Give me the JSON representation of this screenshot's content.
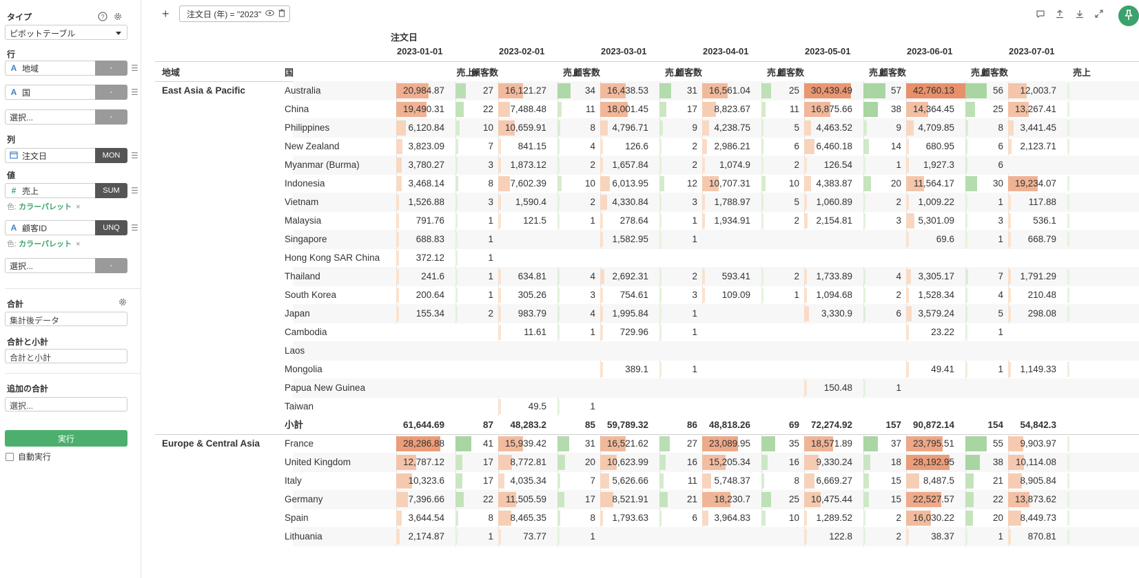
{
  "sidebar": {
    "type_label": "タイプ",
    "type_value": "ピボットテーブル",
    "rows_label": "行",
    "rows": [
      {
        "field": "地域",
        "agg": "-"
      },
      {
        "field": "国",
        "agg": "-"
      }
    ],
    "rows_empty": {
      "field": "選択...",
      "agg": "-"
    },
    "cols_label": "列",
    "col": {
      "field": "注文日",
      "agg": "MON"
    },
    "values_label": "値",
    "values": [
      {
        "field": "売上",
        "agg": "SUM",
        "color_prefix": "色:",
        "color_value": "カラーパレット",
        "remove": "×"
      },
      {
        "field": "顧客ID",
        "agg": "UNQ",
        "color_prefix": "色:",
        "color_value": "カラーパレット",
        "remove": "×"
      }
    ],
    "values_empty": {
      "field": "選択...",
      "agg": "-"
    },
    "total_label": "合計",
    "total_value": "集計後データ",
    "subtotal_label": "合計と小計",
    "subtotal_value": "合計と小計",
    "extra_total_label": "追加の合計",
    "extra_total_placeholder": "選択...",
    "run_label": "実行",
    "autorun_label": "自動実行"
  },
  "topbar": {
    "add_icon": "+",
    "filter_text": "注文日 (年) = \"2023\""
  },
  "pivot": {
    "col_field": "注文日",
    "row_headers": [
      "地域",
      "国"
    ],
    "months": [
      "2023-01-01",
      "2023-02-01",
      "2023-03-01",
      "2023-04-01",
      "2023-05-01",
      "2023-06-01",
      "2023-07-01"
    ],
    "sales_header": "売上",
    "sort_indicator": "▾",
    "customers_header": "顧客数",
    "subtotal_label": "小計",
    "rows": [
      {
        "region": "East Asia & Pacific",
        "country": "Australia",
        "sales": [
          "20,984.87",
          "16,121.27",
          "16,438.53",
          "16,561.04",
          "30,439.49",
          "42,760.13",
          "12,003.7"
        ],
        "cust": [
          "27",
          "34",
          "31",
          "25",
          "57",
          "56",
          ""
        ]
      },
      {
        "region": "",
        "country": "China",
        "sales": [
          "19,490.31",
          "7,488.48",
          "18,001.45",
          "8,823.67",
          "16,875.66",
          "14,364.45",
          "13,267.41"
        ],
        "cust": [
          "22",
          "11",
          "17",
          "11",
          "38",
          "25",
          ""
        ]
      },
      {
        "region": "",
        "country": "Philippines",
        "sales": [
          "6,120.84",
          "10,659.91",
          "4,796.71",
          "4,238.75",
          "4,463.52",
          "4,709.85",
          "3,441.45"
        ],
        "cust": [
          "10",
          "8",
          "9",
          "5",
          "9",
          "8",
          ""
        ]
      },
      {
        "region": "",
        "country": "New Zealand",
        "sales": [
          "3,823.09",
          "841.15",
          "126.6",
          "2,986.21",
          "6,460.18",
          "680.95",
          "2,123.71"
        ],
        "cust": [
          "7",
          "4",
          "2",
          "6",
          "14",
          "6",
          ""
        ]
      },
      {
        "region": "",
        "country": "Myanmar (Burma)",
        "sales": [
          "3,780.27",
          "1,873.12",
          "1,657.84",
          "1,074.9",
          "126.54",
          "1,927.3",
          ""
        ],
        "cust": [
          "3",
          "2",
          "2",
          "2",
          "1",
          "6",
          ""
        ]
      },
      {
        "region": "",
        "country": "Indonesia",
        "sales": [
          "3,468.14",
          "7,602.39",
          "6,013.95",
          "10,707.31",
          "4,383.87",
          "11,564.17",
          "19,234.07"
        ],
        "cust": [
          "8",
          "10",
          "12",
          "10",
          "20",
          "30",
          ""
        ]
      },
      {
        "region": "",
        "country": "Vietnam",
        "sales": [
          "1,526.88",
          "1,590.4",
          "4,330.84",
          "1,788.97",
          "1,060.89",
          "1,009.22",
          "117.88"
        ],
        "cust": [
          "3",
          "2",
          "3",
          "5",
          "2",
          "1",
          ""
        ]
      },
      {
        "region": "",
        "country": "Malaysia",
        "sales": [
          "791.76",
          "121.5",
          "278.64",
          "1,934.91",
          "2,154.81",
          "5,301.09",
          "536.1"
        ],
        "cust": [
          "1",
          "1",
          "1",
          "2",
          "3",
          "3",
          ""
        ]
      },
      {
        "region": "",
        "country": "Singapore",
        "sales": [
          "688.83",
          "",
          "1,582.95",
          "",
          "",
          "69.6",
          "668.79"
        ],
        "cust": [
          "1",
          "",
          "1",
          "",
          "",
          "1",
          ""
        ]
      },
      {
        "region": "",
        "country": "Hong Kong SAR China",
        "sales": [
          "372.12",
          "",
          "",
          "",
          "",
          "",
          ""
        ],
        "cust": [
          "1",
          "",
          "",
          "",
          "",
          "",
          ""
        ]
      },
      {
        "region": "",
        "country": "Thailand",
        "sales": [
          "241.6",
          "634.81",
          "2,692.31",
          "593.41",
          "1,733.89",
          "3,305.17",
          "1,791.29"
        ],
        "cust": [
          "1",
          "4",
          "2",
          "2",
          "4",
          "7",
          ""
        ]
      },
      {
        "region": "",
        "country": "South Korea",
        "sales": [
          "200.64",
          "305.26",
          "754.61",
          "109.09",
          "1,094.68",
          "1,528.34",
          "210.48"
        ],
        "cust": [
          "1",
          "3",
          "3",
          "1",
          "2",
          "4",
          ""
        ]
      },
      {
        "region": "",
        "country": "Japan",
        "sales": [
          "155.34",
          "983.79",
          "1,995.84",
          "",
          "3,330.9",
          "3,579.24",
          "298.08"
        ],
        "cust": [
          "2",
          "4",
          "1",
          "",
          "6",
          "5",
          ""
        ]
      },
      {
        "region": "",
        "country": "Cambodia",
        "sales": [
          "",
          "11.61",
          "729.96",
          "",
          "",
          "23.22",
          ""
        ],
        "cust": [
          "",
          "1",
          "1",
          "",
          "",
          "1",
          ""
        ]
      },
      {
        "region": "",
        "country": "Laos",
        "sales": [
          "",
          "",
          "",
          "",
          "",
          "",
          ""
        ],
        "cust": [
          "",
          "",
          "",
          "",
          "",
          "",
          ""
        ]
      },
      {
        "region": "",
        "country": "Mongolia",
        "sales": [
          "",
          "",
          "389.1",
          "",
          "",
          "49.41",
          "1,149.33"
        ],
        "cust": [
          "",
          "",
          "1",
          "",
          "",
          "1",
          ""
        ]
      },
      {
        "region": "",
        "country": "Papua New Guinea",
        "sales": [
          "",
          "",
          "",
          "",
          "150.48",
          "",
          ""
        ],
        "cust": [
          "",
          "",
          "",
          "",
          "1",
          "",
          ""
        ]
      },
      {
        "region": "",
        "country": "Taiwan",
        "sales": [
          "",
          "49.5",
          "",
          "",
          "",
          "",
          ""
        ],
        "cust": [
          "",
          "1",
          "",
          "",
          "",
          "",
          ""
        ]
      },
      {
        "region": "",
        "country": "小計",
        "subtotal": true,
        "sales": [
          "61,644.69",
          "48,283.2",
          "59,789.32",
          "48,818.26",
          "72,274.92",
          "90,872.14",
          "54,842.3"
        ],
        "cust": [
          "87",
          "85",
          "86",
          "69",
          "157",
          "154",
          ""
        ]
      },
      {
        "region": "Europe & Central Asia",
        "country": "France",
        "sales": [
          "28,286.88",
          "15,939.42",
          "16,521.62",
          "23,089.95",
          "18,571.89",
          "23,795.51",
          "9,903.97"
        ],
        "cust": [
          "41",
          "31",
          "27",
          "35",
          "37",
          "55",
          ""
        ]
      },
      {
        "region": "",
        "country": "United Kingdom",
        "sales": [
          "12,787.12",
          "8,772.81",
          "10,623.99",
          "15,205.34",
          "9,330.24",
          "28,192.95",
          "10,114.08"
        ],
        "cust": [
          "17",
          "20",
          "16",
          "16",
          "18",
          "38",
          ""
        ]
      },
      {
        "region": "",
        "country": "Italy",
        "sales": [
          "10,323.6",
          "4,035.34",
          "5,626.66",
          "5,748.37",
          "6,669.27",
          "8,487.5",
          "8,905.84"
        ],
        "cust": [
          "17",
          "7",
          "11",
          "8",
          "15",
          "21",
          ""
        ]
      },
      {
        "region": "",
        "country": "Germany",
        "sales": [
          "7,396.66",
          "11,505.59",
          "8,521.91",
          "18,230.7",
          "10,475.44",
          "22,527.57",
          "13,873.62"
        ],
        "cust": [
          "22",
          "17",
          "21",
          "25",
          "15",
          "22",
          ""
        ]
      },
      {
        "region": "",
        "country": "Spain",
        "sales": [
          "3,644.54",
          "8,465.35",
          "1,793.63",
          "3,964.83",
          "1,289.52",
          "16,030.22",
          "8,449.73"
        ],
        "cust": [
          "8",
          "8",
          "6",
          "10",
          "2",
          "20",
          ""
        ]
      },
      {
        "region": "",
        "country": "Lithuania",
        "sales": [
          "2,174.87",
          "73.77",
          "",
          "",
          "122.8",
          "38.37",
          "870.81"
        ],
        "cust": [
          "1",
          "1",
          "",
          "",
          "2",
          "1",
          ""
        ]
      }
    ]
  },
  "colors": {
    "accent": "#4caf6e",
    "sales_low": "#fbe3cf",
    "sales_high": "#e8906a",
    "cust_low": "#e6f4dc",
    "cust_high": "#a8d5a2"
  }
}
